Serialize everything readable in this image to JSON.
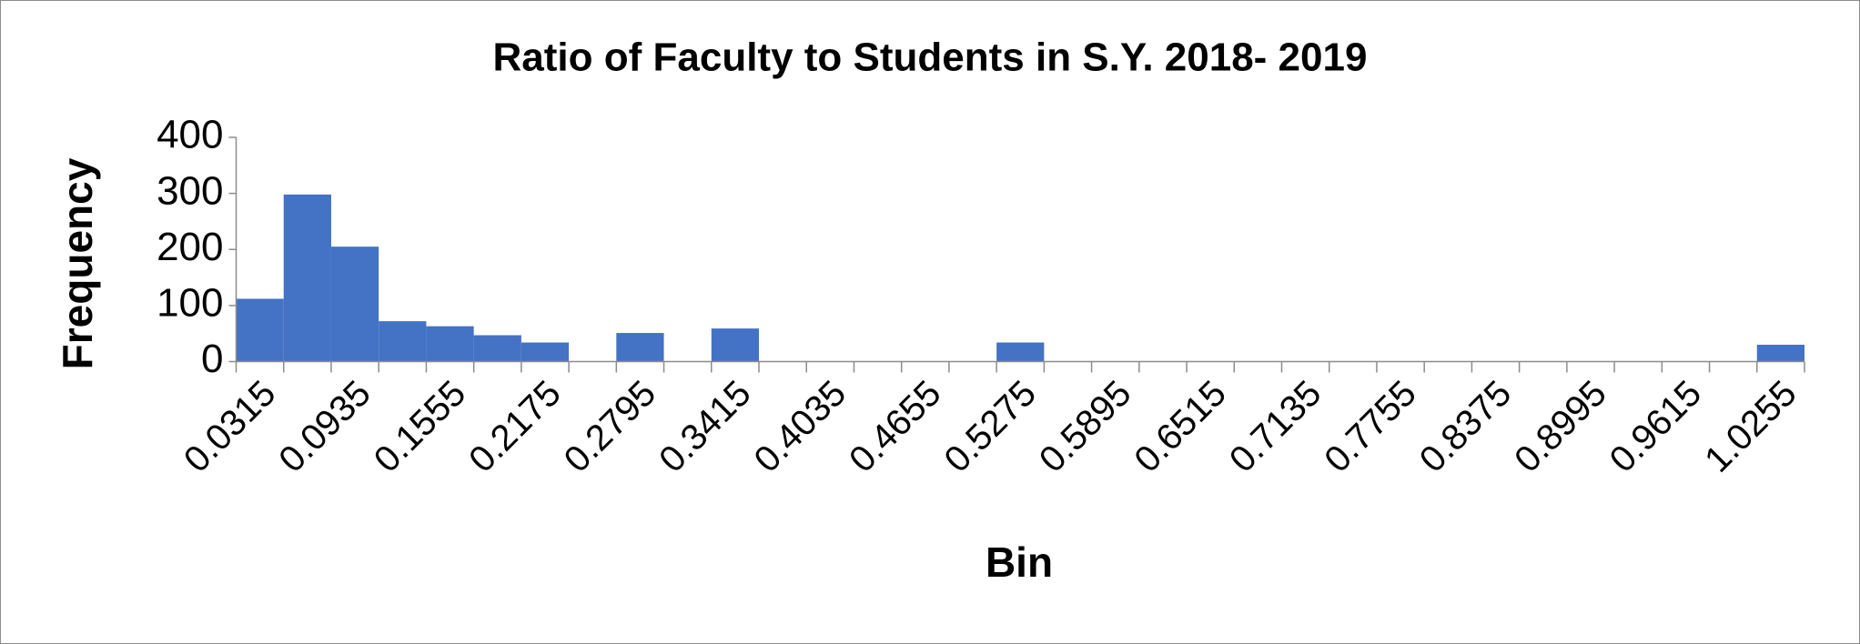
{
  "chart_data": {
    "type": "bar",
    "title": "Ratio of Faculty to Students in S.Y. 2018- 2019",
    "x_label": "Bin",
    "y_label": "Frequency",
    "categories": [
      "0.0315",
      null,
      "0.0935",
      null,
      "0.1555",
      null,
      "0.2175",
      null,
      "0.2795",
      null,
      "0.3415",
      null,
      "0.4035",
      null,
      "0.4655",
      null,
      "0.5275",
      null,
      "0.5895",
      null,
      "0.6515",
      null,
      "0.7135",
      null,
      "0.7755",
      null,
      "0.8375",
      null,
      "0.8995",
      null,
      "0.9615",
      null,
      "1.0255"
    ],
    "values": [
      112,
      298,
      205,
      72,
      63,
      47,
      34,
      0,
      51,
      0,
      59,
      0,
      0,
      0,
      0,
      0,
      34,
      0,
      0,
      0,
      0,
      0,
      0,
      0,
      0,
      0,
      0,
      0,
      0,
      0,
      0,
      0,
      30
    ],
    "color": "#4472c4",
    "ylim": [
      0,
      400
    ],
    "yticks": [
      0,
      100,
      200,
      300,
      400
    ],
    "grid": false
  }
}
